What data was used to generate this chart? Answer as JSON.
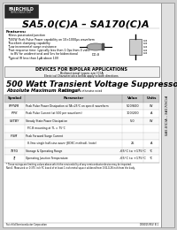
{
  "bg_color": "#d0d0d0",
  "page_bg": "#ffffff",
  "border_color": "#555555",
  "title": "SA5.0(C)A – SA170(C)A",
  "subtitle": "500 Watt Transient Voltage Suppressors",
  "section_title": "Absolute Maximum Ratings",
  "features_title": "Features:",
  "features": [
    "Glass passivated junction",
    "500W Peak Pulse Power capability on 10×1000µs waveform",
    "Excellent clamping capability",
    "Low incremental surge resistance",
    "Fast response time: typically less than 1.0ps from 0 volts",
    "  to BV for unidirectional and 5ns for bidirectional",
    "Typical IR less than 1µA above 10V"
  ],
  "bipolar_note": "DEVICES FOR BIPOLAR APPLICATIONS",
  "bipolar_sub1": "Bidirectional types are (C)A",
  "bipolar_sub2": "Electrical Characteristics below apply to both directions",
  "table_headers": [
    "Symbol",
    "Parameter",
    "Value",
    "Units"
  ],
  "table_rows": [
    [
      "PPPWR",
      "Peak Pulse Power Dissipation at TA=25°C on specif. waveform",
      "500/600",
      "W"
    ],
    [
      "IPPK",
      "Peak Pulse Current (at 500 per waveform)",
      "100/200",
      "A"
    ],
    [
      "VSTBY",
      "Steady State Power Dissipation",
      "5.0",
      "W"
    ],
    [
      "",
      "  P.C.B mounting at TL = 75°C",
      "",
      ""
    ],
    [
      "IFSM",
      "Peak Forward Surge Current",
      "",
      ""
    ],
    [
      "",
      "  8.3ms single half-sine-wave (JEDEC method), (note)",
      "25",
      "A"
    ],
    [
      "TSTG",
      "Storage & Operating Range",
      "-65°C to +175°C",
      "°C"
    ],
    [
      "TJ",
      "Operating Junction Temperature",
      "-65°C to +175°C",
      "°C"
    ]
  ],
  "footer_note1": "* These ratings are limiting values above which the serviceability of any semiconductor device may be impaired.",
  "footer_note2": "Note1: Measured on 0.375 inch PC board of at least 1 inch metal square soldered from 0.06-0.28 inch from the body.",
  "company": "Fairchild Semiconductor Corporation",
  "doc_num": "DS9015 REV. B 1",
  "sidebar_text": "SA5.0(C)A – SA170(C)A"
}
